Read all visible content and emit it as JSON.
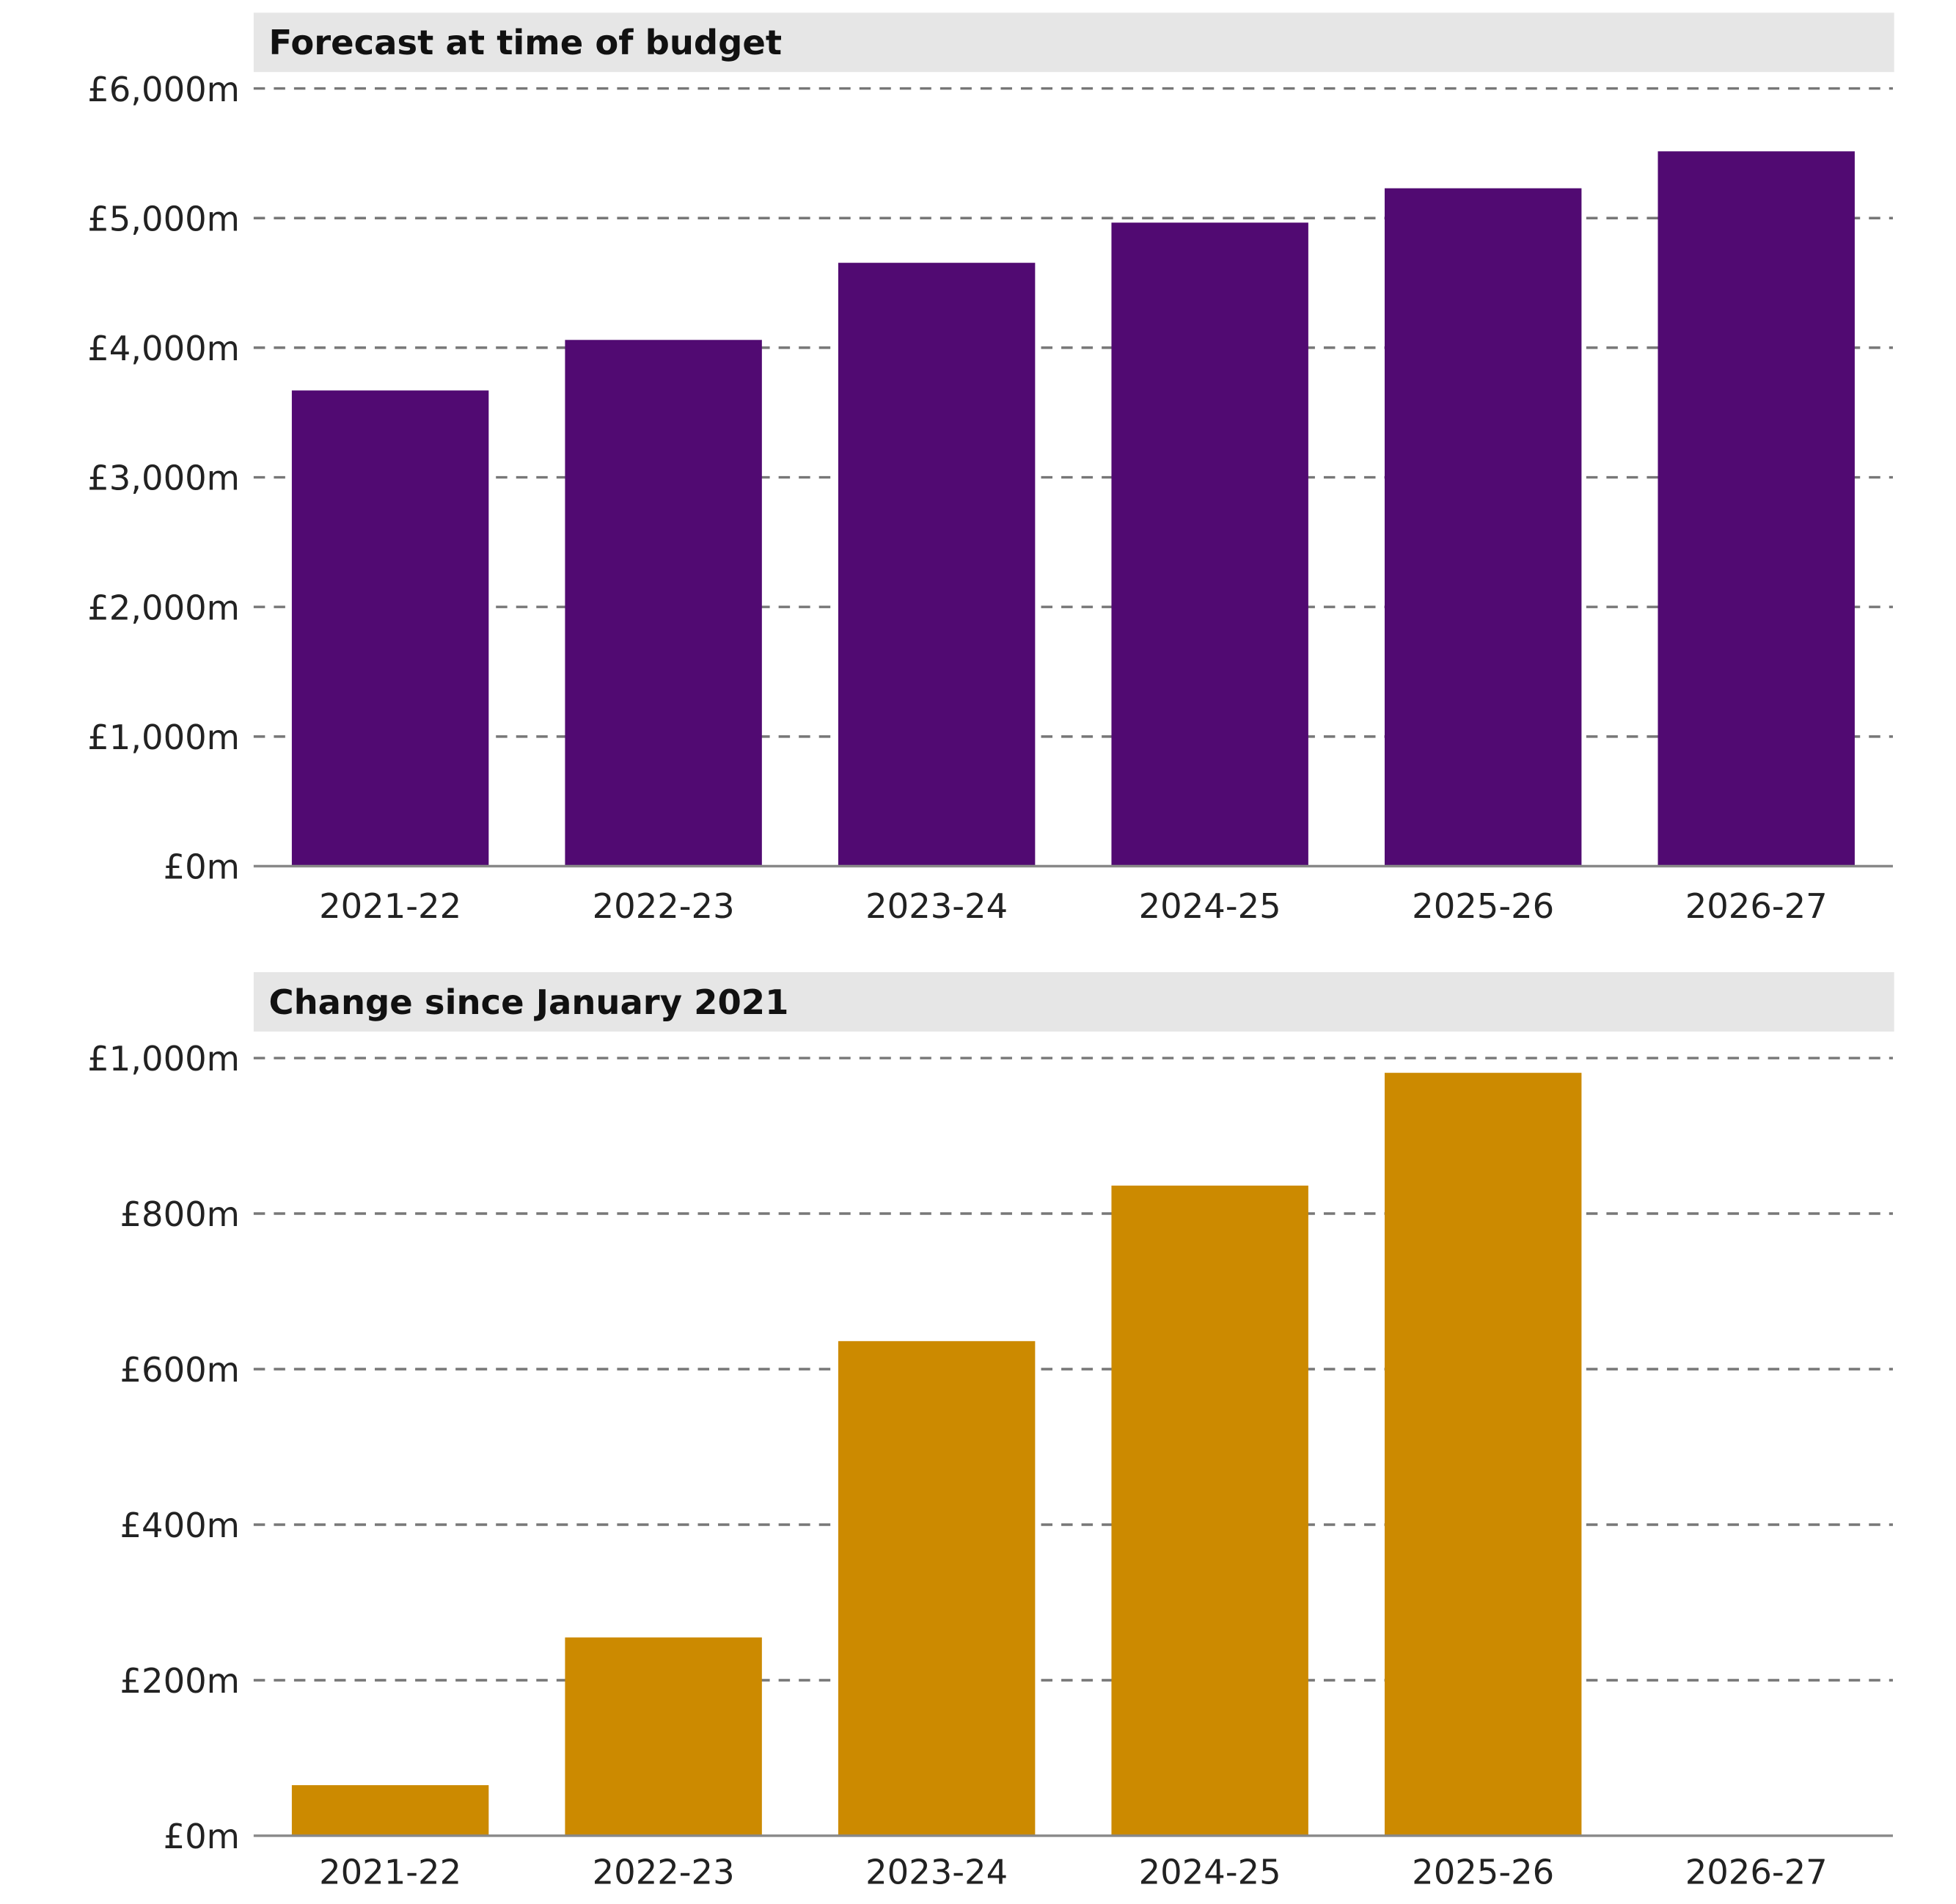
{
  "chart_data": [
    {
      "type": "bar",
      "title": "Forecast at time of budget",
      "categories": [
        "2021-22",
        "2022-23",
        "2023-24",
        "2024-25",
        "2025-26",
        "2026-27"
      ],
      "values": [
        3670,
        4060,
        4655,
        4965,
        5230,
        5515
      ],
      "ylim": [
        0,
        6000
      ],
      "yticks": [
        0,
        1000,
        2000,
        3000,
        4000,
        5000,
        6000
      ],
      "ytick_labels": [
        "£0m",
        "£1,000m",
        "£2,000m",
        "£3,000m",
        "£4,000m",
        "£5,000m",
        "£6,000m"
      ],
      "grid": true,
      "color": "#510a72"
    },
    {
      "type": "bar",
      "title": "Change since January 2021",
      "categories": [
        "2021-22",
        "2022-23",
        "2023-24",
        "2024-25",
        "2025-26",
        "2026-27"
      ],
      "values": [
        65,
        255,
        636,
        836,
        981,
        null
      ],
      "ylim": [
        0,
        1000
      ],
      "yticks": [
        0,
        200,
        400,
        600,
        800,
        1000
      ],
      "ytick_labels": [
        "£0m",
        "£200m",
        "£400m",
        "£600m",
        "£800m",
        "£1,000m"
      ],
      "grid": true,
      "color": "#cc8a00"
    }
  ]
}
